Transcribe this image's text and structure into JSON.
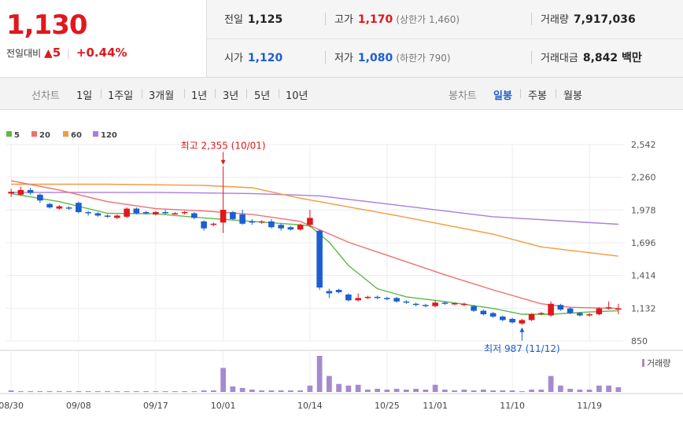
{
  "quote": {
    "price": "1,130",
    "change_label": "전일대비",
    "change_arrow": "▲",
    "change_value": "5",
    "change_rate": "+0.44%",
    "prev_close_label": "전일",
    "prev_close": "1,125",
    "high_label": "고가",
    "high": "1,170",
    "upper_limit_label": "(상한가 1,460)",
    "volume_label": "거래량",
    "volume": "7,917,036",
    "open_label": "시가",
    "open": "1,120",
    "low_label": "저가",
    "low": "1,080",
    "lower_limit_label": "(하한가 790)",
    "amount_label": "거래대금",
    "amount": "8,842 백만"
  },
  "toolbar": {
    "line_chart_label": "선차트",
    "line_periods": [
      "1일",
      "1주일",
      "3개월",
      "1년",
      "3년",
      "5년",
      "10년"
    ],
    "candle_chart_label": "봉차트",
    "candle_periods": [
      "일봉",
      "주봉",
      "월봉"
    ],
    "candle_selected": "일봉"
  },
  "colors": {
    "up": "#e0181e",
    "down": "#1c5fd0",
    "ma5": "#5fb945",
    "ma20": "#f07070",
    "ma60": "#f39a3c",
    "ma120": "#a67ee0",
    "volume": "#a48bd0"
  },
  "chart_data": {
    "type": "candlestick",
    "legend": [
      "5",
      "20",
      "60",
      "120"
    ],
    "y_ticks": [
      "2,542",
      "2,260",
      "1,978",
      "1,696",
      "1,414",
      "1,132",
      "850"
    ],
    "ylim": [
      850,
      2542
    ],
    "x_ticks": [
      "08/30",
      "09/08",
      "09/17",
      "10/01",
      "10/14",
      "10/25",
      "11/01",
      "11/10",
      "11/19"
    ],
    "x_tick_index": [
      0,
      7,
      15,
      22,
      31,
      39,
      44,
      52,
      60
    ],
    "annotations": [
      {
        "text": "최고 2,355 (10/01)",
        "index": 22,
        "value": 2355,
        "color": "#e0181e",
        "pos": "above"
      },
      {
        "text": "최저 987 (11/12)",
        "index": 53,
        "value": 987,
        "color": "#1c5fd0",
        "pos": "below"
      }
    ],
    "volume_label": "거래량",
    "candles": [
      [
        2120,
        2135,
        2160,
        2090
      ],
      [
        2110,
        2150,
        2180,
        2100
      ],
      [
        2150,
        2125,
        2170,
        2110
      ],
      [
        2110,
        2060,
        2120,
        2040
      ],
      [
        2030,
        2000,
        2040,
        1990
      ],
      [
        1990,
        2010,
        2020,
        1980
      ],
      [
        2000,
        1990,
        2010,
        1980
      ],
      [
        2040,
        1960,
        2050,
        1950
      ],
      [
        1960,
        1950,
        1970,
        1930
      ],
      [
        1950,
        1930,
        1960,
        1920
      ],
      [
        1930,
        1920,
        1940,
        1910
      ],
      [
        1910,
        1930,
        1940,
        1900
      ],
      [
        1920,
        1990,
        2000,
        1910
      ],
      [
        1990,
        1950,
        2000,
        1940
      ],
      [
        1960,
        1950,
        1970,
        1940
      ],
      [
        1940,
        1960,
        1970,
        1930
      ],
      [
        1960,
        1950,
        1980,
        1940
      ],
      [
        1950,
        1950,
        1960,
        1940
      ],
      [
        1950,
        1960,
        1970,
        1940
      ],
      [
        1950,
        1910,
        1960,
        1900
      ],
      [
        1880,
        1820,
        1890,
        1800
      ],
      [
        1850,
        1860,
        1870,
        1840
      ],
      [
        1870,
        1980,
        2355,
        1780
      ],
      [
        1960,
        1900,
        1970,
        1890
      ],
      [
        1940,
        1860,
        1980,
        1850
      ],
      [
        1880,
        1870,
        1900,
        1850
      ],
      [
        1870,
        1880,
        1890,
        1860
      ],
      [
        1880,
        1830,
        1900,
        1820
      ],
      [
        1850,
        1820,
        1860,
        1800
      ],
      [
        1830,
        1810,
        1840,
        1800
      ],
      [
        1810,
        1850,
        1860,
        1800
      ],
      [
        1850,
        1910,
        1980,
        1830
      ],
      [
        1800,
        1310,
        1810,
        1290
      ],
      [
        1280,
        1260,
        1300,
        1220
      ],
      [
        1290,
        1270,
        1300,
        1260
      ],
      [
        1250,
        1200,
        1260,
        1190
      ],
      [
        1200,
        1220,
        1260,
        1190
      ],
      [
        1220,
        1230,
        1240,
        1210
      ],
      [
        1230,
        1220,
        1240,
        1210
      ],
      [
        1220,
        1210,
        1230,
        1200
      ],
      [
        1220,
        1190,
        1230,
        1180
      ],
      [
        1190,
        1180,
        1200,
        1170
      ],
      [
        1170,
        1160,
        1180,
        1150
      ],
      [
        1160,
        1150,
        1170,
        1140
      ],
      [
        1150,
        1180,
        1200,
        1140
      ],
      [
        1180,
        1170,
        1190,
        1160
      ],
      [
        1170,
        1175,
        1180,
        1160
      ],
      [
        1160,
        1170,
        1180,
        1150
      ],
      [
        1150,
        1110,
        1160,
        1100
      ],
      [
        1110,
        1080,
        1120,
        1070
      ],
      [
        1090,
        1060,
        1100,
        1050
      ],
      [
        1060,
        1030,
        1070,
        1020
      ],
      [
        1040,
        1010,
        1050,
        1000
      ],
      [
        1000,
        1030,
        1040,
        987
      ],
      [
        1030,
        1080,
        1090,
        1020
      ],
      [
        1080,
        1090,
        1100,
        1070
      ],
      [
        1070,
        1170,
        1190,
        1060
      ],
      [
        1160,
        1120,
        1170,
        1110
      ],
      [
        1130,
        1090,
        1140,
        1080
      ],
      [
        1090,
        1070,
        1100,
        1060
      ],
      [
        1070,
        1080,
        1090,
        1060
      ],
      [
        1080,
        1130,
        1140,
        1070
      ],
      [
        1130,
        1140,
        1190,
        1120
      ],
      [
        1125,
        1130,
        1170,
        1080
      ]
    ],
    "ma5": [
      [
        0,
        2120
      ],
      [
        5,
        2050
      ],
      [
        10,
        1950
      ],
      [
        15,
        1945
      ],
      [
        20,
        1910
      ],
      [
        25,
        1880
      ],
      [
        30,
        1850
      ],
      [
        31,
        1840
      ],
      [
        33,
        1700
      ],
      [
        35,
        1500
      ],
      [
        38,
        1300
      ],
      [
        41,
        1230
      ],
      [
        45,
        1190
      ],
      [
        50,
        1130
      ],
      [
        53,
        1080
      ],
      [
        56,
        1080
      ],
      [
        60,
        1100
      ],
      [
        63,
        1110
      ]
    ],
    "ma20": [
      [
        0,
        2230
      ],
      [
        5,
        2150
      ],
      [
        10,
        2050
      ],
      [
        15,
        1990
      ],
      [
        20,
        1970
      ],
      [
        25,
        1940
      ],
      [
        30,
        1880
      ],
      [
        35,
        1700
      ],
      [
        40,
        1560
      ],
      [
        45,
        1420
      ],
      [
        50,
        1290
      ],
      [
        55,
        1170
      ],
      [
        58,
        1140
      ],
      [
        63,
        1130
      ]
    ],
    "ma60": [
      [
        0,
        2200
      ],
      [
        10,
        2200
      ],
      [
        20,
        2190
      ],
      [
        25,
        2170
      ],
      [
        30,
        2080
      ],
      [
        40,
        1930
      ],
      [
        50,
        1770
      ],
      [
        55,
        1660
      ],
      [
        63,
        1580
      ]
    ],
    "ma120": [
      [
        0,
        2130
      ],
      [
        15,
        2130
      ],
      [
        25,
        2120
      ],
      [
        32,
        2100
      ],
      [
        40,
        2020
      ],
      [
        50,
        1920
      ],
      [
        63,
        1855
      ]
    ],
    "volume": [
      2,
      1,
      1,
      1,
      1,
      1,
      1,
      1,
      1,
      1,
      1,
      1,
      1,
      1,
      1,
      1,
      1,
      1,
      1,
      1,
      2,
      2,
      30,
      7,
      5,
      3,
      2,
      2,
      2,
      2,
      2,
      8,
      45,
      20,
      10,
      8,
      9,
      3,
      4,
      3,
      4,
      3,
      4,
      3,
      9,
      3,
      2,
      3,
      2,
      3,
      2,
      2,
      2,
      1,
      3,
      3,
      20,
      8,
      4,
      3,
      3,
      8,
      8,
      6
    ]
  }
}
